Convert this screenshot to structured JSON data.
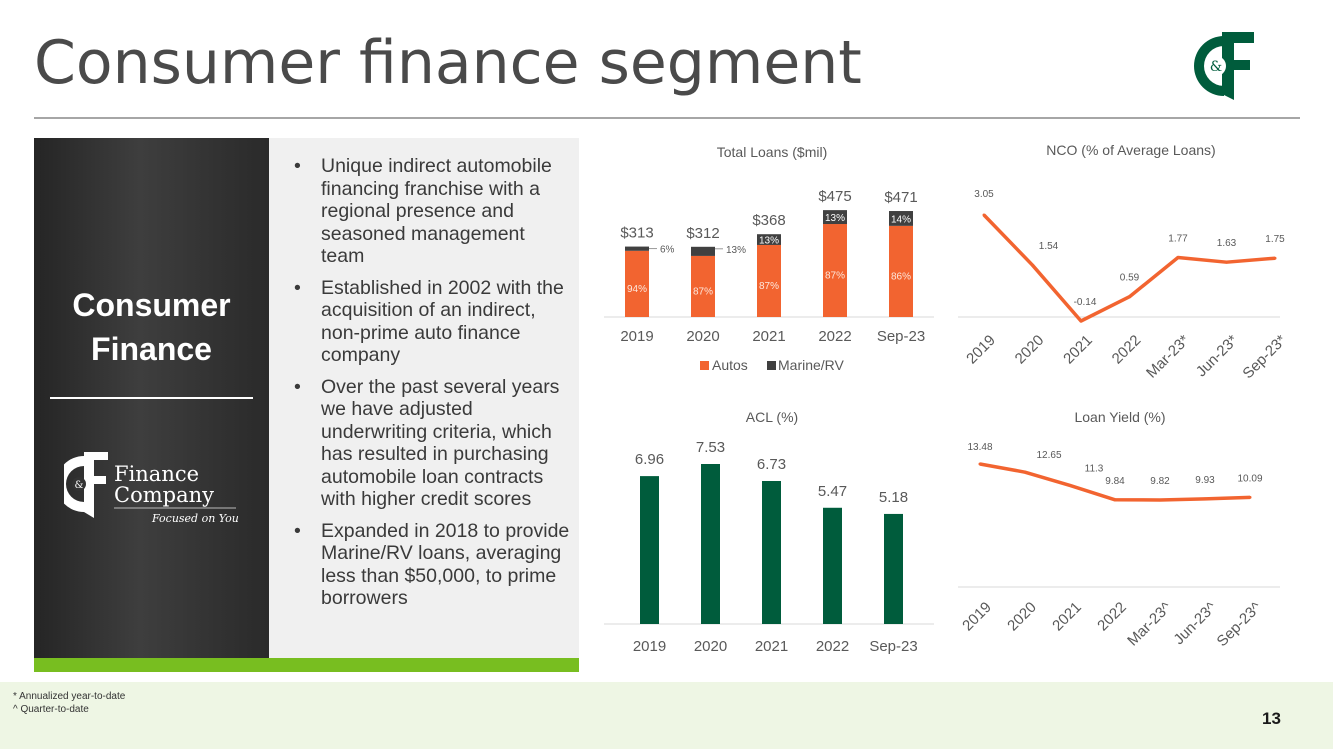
{
  "header": {
    "title": "Consumer finance segment"
  },
  "segment": {
    "title_line1": "Consumer",
    "title_line2": "Finance"
  },
  "fc_logo": {
    "word1": "Finance",
    "word2": "Company",
    "tagline": "Focused on You",
    "mark": "&"
  },
  "corp_logo": {
    "mark": "&"
  },
  "bullets": [
    "Unique indirect automobile financing franchise with a regional presence and seasoned management team",
    "Established in 2002 with the acquisition of an indirect, non-prime auto finance company",
    "Over the past several years we have adjusted underwriting criteria, which has resulted in purchasing automobile loan contracts with higher credit scores",
    "Expanded in 2018 to provide Marine/RV loans, averaging less than $50,000, to prime borrowers"
  ],
  "footnotes": {
    "annualized": "* Annualized year-to-date",
    "quarter": "^ Quarter-to-date"
  },
  "page_number": "13",
  "colors": {
    "orange": "#f26430",
    "dark": "#404040",
    "green": "#005c3c",
    "accent_green": "#78be20"
  },
  "chart_data": [
    {
      "type": "bar",
      "title": "Total Loans ($mil)",
      "categories": [
        "2019",
        "2020",
        "2021",
        "2022",
        "Sep-23"
      ],
      "totals": [
        313,
        312,
        368,
        475,
        471
      ],
      "total_labels": [
        "$313",
        "$312",
        "$368",
        "$475",
        "$471"
      ],
      "series": [
        {
          "name": "Autos",
          "shares": [
            94,
            87,
            87,
            87,
            86
          ],
          "labels": [
            "94%",
            "87%",
            "87%",
            "87%",
            "86%"
          ]
        },
        {
          "name": "Marine/RV",
          "shares": [
            6,
            13,
            13,
            13,
            14
          ],
          "labels": [
            "6%",
            "13%",
            "13%",
            "13%",
            "14%"
          ]
        }
      ],
      "legend": "bottom"
    },
    {
      "type": "line",
      "title": "NCO (% of Average Loans)",
      "categories": [
        "2019",
        "2020",
        "2021",
        "2022",
        "Mar-23*",
        "Jun-23*",
        "Sep-23*"
      ],
      "values": [
        3.05,
        1.54,
        -0.14,
        0.59,
        1.77,
        1.63,
        1.75
      ],
      "labels": [
        "3.05",
        "1.54",
        "-0.14",
        "0.59",
        "1.77",
        "1.63",
        "1.75"
      ]
    },
    {
      "type": "bar",
      "title": "ACL (%)",
      "categories": [
        "2019",
        "2020",
        "2021",
        "2022",
        "Sep-23"
      ],
      "values": [
        6.96,
        7.53,
        6.73,
        5.47,
        5.18
      ],
      "labels": [
        "6.96",
        "7.53",
        "6.73",
        "5.47",
        "5.18"
      ]
    },
    {
      "type": "line",
      "title": "Loan Yield (%)",
      "categories": [
        "2019",
        "2020",
        "2021",
        "2022",
        "Mar-23^",
        "Jun-23^",
        "Sep-23^"
      ],
      "values": [
        13.48,
        12.65,
        11.3,
        9.84,
        9.82,
        9.93,
        10.09
      ],
      "labels": [
        "13.48",
        "12.65",
        "11.3",
        "9.84",
        "9.82",
        "9.93",
        "10.09"
      ]
    }
  ]
}
